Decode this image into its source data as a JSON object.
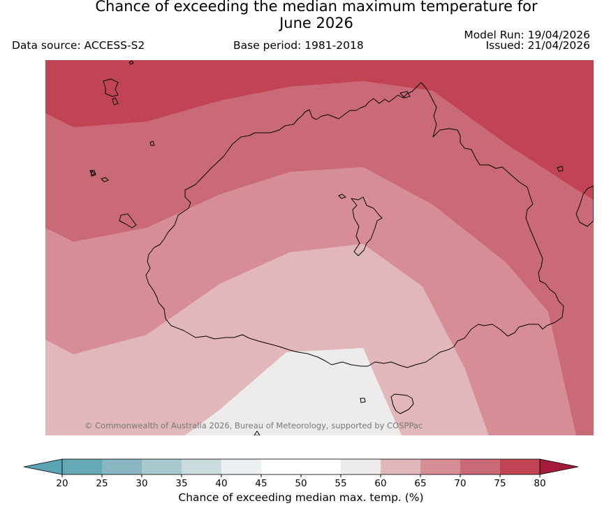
{
  "header": {
    "title_line1": "Chance of exceeding the median maximum temperature for",
    "title_line2": "June 2026",
    "data_source": "Data source: ACCESS-S2",
    "base_period": "Base period: 1981-2018",
    "model_run": "Model Run: 19/04/2026",
    "issued": "Issued: 21/04/2026"
  },
  "map": {
    "copyright": "© Commonwealth of Australia 2026, Bureau of Meteorology, supported by COSPPac"
  },
  "colorbar": {
    "label": "Chance of exceeding median max. temp. (%)",
    "ticks": [
      "20",
      "25",
      "30",
      "35",
      "40",
      "45",
      "50",
      "55",
      "60",
      "65",
      "70",
      "75",
      "80"
    ],
    "colors": [
      "#65a8b6",
      "#88b7c2",
      "#a8c8cd",
      "#cbdcdf",
      "#ebf1f3",
      "#ffffff",
      "#ffffff",
      "#eeeceb",
      "#e1b7bc",
      "#d68d96",
      "#ca6a76",
      "#c04454"
    ],
    "under_color": "#5aa3b2",
    "over_color": "#a31b39"
  }
}
